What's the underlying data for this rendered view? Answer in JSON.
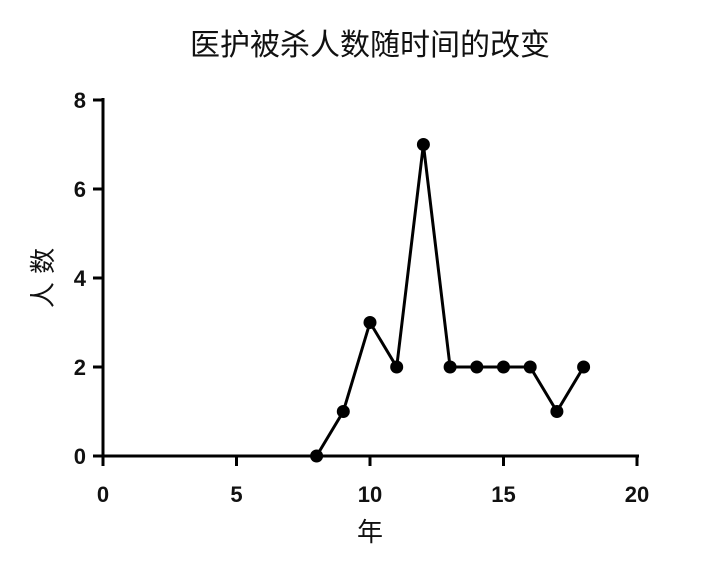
{
  "chart_data": {
    "type": "line",
    "title": "医护被杀人数随时间的改变",
    "xlabel": "年",
    "ylabel": "人 数",
    "xlim": [
      0,
      20
    ],
    "ylim": [
      0,
      8
    ],
    "x_ticks": [
      0,
      5,
      10,
      15,
      20
    ],
    "y_ticks": [
      0,
      2,
      4,
      6,
      8
    ],
    "grid": false,
    "series": [
      {
        "x": [
          8,
          9,
          10,
          11,
          12,
          13,
          14,
          15,
          16,
          17,
          18
        ],
        "values": [
          0,
          1,
          3,
          2,
          7,
          2,
          2,
          2,
          2,
          1,
          2
        ],
        "color": "#000000",
        "marker": "circle"
      }
    ]
  }
}
